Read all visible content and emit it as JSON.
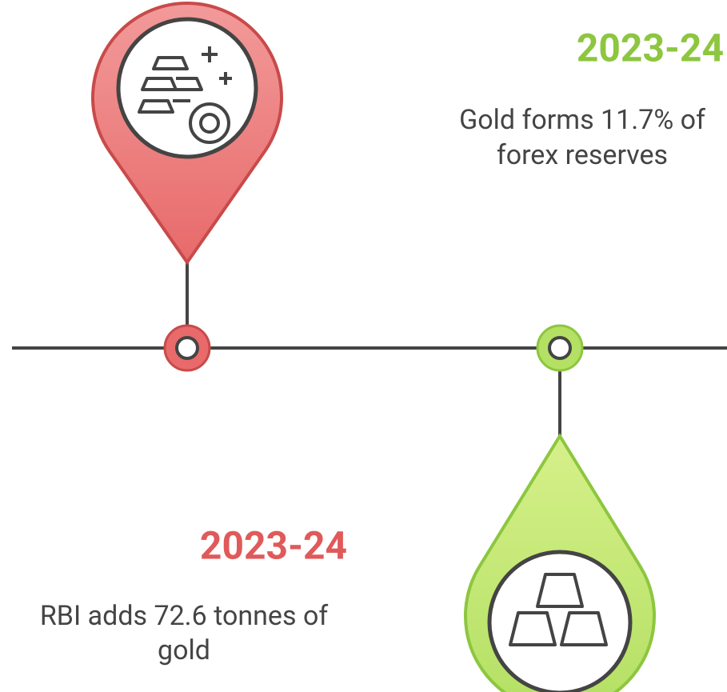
{
  "events": [
    {
      "year": "2023-24",
      "lines": [
        "RBI adds 72.6 tonnes of",
        "gold"
      ]
    },
    {
      "year": "2023-24",
      "lines": [
        "Gold forms 11.7% of",
        "forex reserves"
      ]
    }
  ]
}
